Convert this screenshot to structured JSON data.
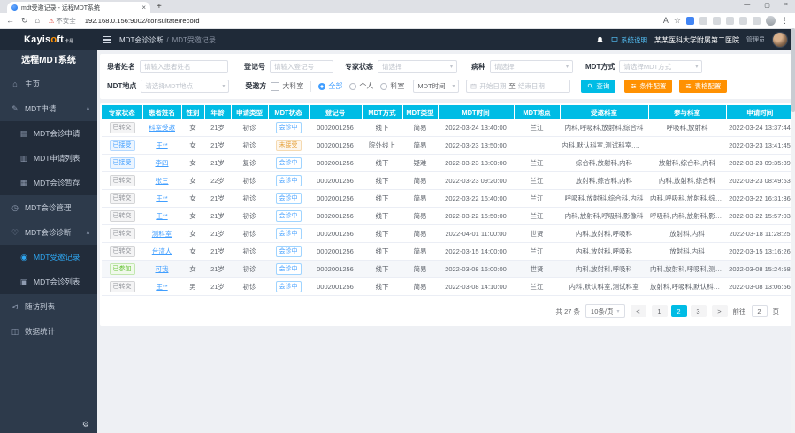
{
  "browser": {
    "tab_title": "mdt受邀记录 - 远程MDT系统",
    "security_label": "不安全",
    "url": "192.168.0.156:9002/consultate/record"
  },
  "icons": {
    "back": "←",
    "reload": "↻",
    "home": "⌂",
    "warning": "⚠",
    "translate": "A",
    "star": "☆",
    "more": "⋮",
    "minimize": "—",
    "maximize": "▢",
    "close": "×",
    "tab_close": "×",
    "new_tab": "+",
    "caret_down": "▾",
    "caret_up": "∧",
    "gear": "⚙"
  },
  "header": {
    "logo_left": "Kayis",
    "logo_o": "o",
    "logo_right": "ft",
    "logo_cn": "卡易",
    "breadcrumb": [
      "MDT会诊诊断",
      "MDT受邀记录"
    ],
    "system_help": "系统说明",
    "hospital": "某某医科大学附属第二医院",
    "role": "管理员"
  },
  "sidebar": {
    "title": "远程MDT系统",
    "items": [
      {
        "label": "主页",
        "icon": "home-icon"
      },
      {
        "label": "MDT申请",
        "icon": "edit-icon",
        "expanded": true,
        "children": [
          {
            "label": "MDT会诊申请",
            "icon": "form-icon"
          },
          {
            "label": "MDT申请列表",
            "icon": "list-icon"
          },
          {
            "label": "MDT会诊暂存",
            "icon": "draft-icon"
          }
        ]
      },
      {
        "label": "MDT会诊管理",
        "icon": "clock-icon"
      },
      {
        "label": "MDT会诊诊断",
        "icon": "diagnose-icon",
        "expanded": true,
        "children": [
          {
            "label": "MDT受邀记录",
            "icon": "record-icon",
            "active": true
          },
          {
            "label": "MDT会诊列表",
            "icon": "consult-list-icon"
          }
        ]
      },
      {
        "label": "随访列表",
        "icon": "follow-up-icon"
      },
      {
        "label": "数据统计",
        "icon": "stats-icon"
      }
    ]
  },
  "filters": {
    "patient_name": {
      "label": "患者姓名",
      "placeholder": "请输入患者姓名"
    },
    "reg_no": {
      "label": "登记号",
      "placeholder": "请输入登记号"
    },
    "expert_status": {
      "label": "专家状态",
      "placeholder": "请选择"
    },
    "disease": {
      "label": "病种",
      "placeholder": "请选择"
    },
    "mdt_mode": {
      "label": "MDT方式",
      "placeholder": "请选择MDT方式"
    },
    "mdt_place": {
      "label": "MDT地点",
      "placeholder": "请选择MDT地点"
    },
    "invitee": {
      "label": "受邀方",
      "checkbox": "大科室",
      "radios": [
        "全部",
        "个人",
        "科室"
      ],
      "selected_radio": "全部"
    },
    "time_select": "MDT时间",
    "date_start": "开始日期",
    "date_to": "至",
    "date_end": "结束日期",
    "search_btn": "查询",
    "cond_btn": "条件配置",
    "table_btn": "表格配置"
  },
  "table": {
    "columns": [
      "专家状态",
      "患者姓名",
      "性别",
      "年龄",
      "申请类型",
      "MDT状态",
      "登记号",
      "MDT方式",
      "MDT类型",
      "MDT时间",
      "MDT地点",
      "受邀科室",
      "参与科室",
      "申请时间"
    ],
    "rows": [
      {
        "expert_status": "已转交",
        "expert_type": "default",
        "name": "科室受邀",
        "sex": "女",
        "age": "21岁",
        "req_type": "初诊",
        "mdt_status": "会诊中",
        "mdt_status_type": "proc",
        "reg_no": "0002001256",
        "mdt_mode": "线下",
        "mdt_type": "简易",
        "mdt_time": "2022-03-24 13:40:00",
        "mdt_place": "兰江",
        "invited_depts": "内科,呼吸科,放射科,综合科",
        "joined_depts": "呼吸科,放射科",
        "apply_time": "2022-03-24 13:37:44"
      },
      {
        "expert_status": "已接受",
        "expert_type": "primary",
        "name": "王**",
        "sex": "女",
        "age": "21岁",
        "req_type": "初诊",
        "mdt_status": "未接受",
        "mdt_status_type": "warn",
        "reg_no": "0002001256",
        "mdt_mode": "院外线上",
        "mdt_type": "简易",
        "mdt_time": "2022-03-23 13:50:00",
        "mdt_place": "",
        "invited_depts": "内科,默认科室,测试科室,放射科",
        "joined_depts": "",
        "apply_time": "2022-03-23 13:41:45"
      },
      {
        "expert_status": "已接受",
        "expert_type": "primary",
        "name": "李四",
        "sex": "女",
        "age": "21岁",
        "req_type": "复诊",
        "mdt_status": "会诊中",
        "mdt_status_type": "proc",
        "reg_no": "0002001256",
        "mdt_mode": "线下",
        "mdt_type": "疑难",
        "mdt_time": "2022-03-23 13:00:00",
        "mdt_place": "兰江",
        "invited_depts": "综合科,放射科,内科",
        "joined_depts": "放射科,综合科,内科",
        "apply_time": "2022-03-23 09:35:39"
      },
      {
        "expert_status": "已转交",
        "expert_type": "default",
        "name": "张三",
        "sex": "女",
        "age": "22岁",
        "req_type": "初诊",
        "mdt_status": "会诊中",
        "mdt_status_type": "proc",
        "reg_no": "0002001256",
        "mdt_mode": "线下",
        "mdt_type": "简易",
        "mdt_time": "2022-03-23 09:20:00",
        "mdt_place": "兰江",
        "invited_depts": "放射科,综合科,内科",
        "joined_depts": "内科,放射科,综合科",
        "apply_time": "2022-03-23 08:49:53"
      },
      {
        "expert_status": "已转交",
        "expert_type": "default",
        "name": "王**",
        "sex": "女",
        "age": "21岁",
        "req_type": "初诊",
        "mdt_status": "会诊中",
        "mdt_status_type": "proc",
        "reg_no": "0002001256",
        "mdt_mode": "线下",
        "mdt_type": "简易",
        "mdt_time": "2022-03-22 16:40:00",
        "mdt_place": "兰江",
        "invited_depts": "呼吸科,放射科,综合科,内科",
        "joined_depts": "内科,呼吸科,放射科,综合科",
        "apply_time": "2022-03-22 16:31:36"
      },
      {
        "expert_status": "已转交",
        "expert_type": "default",
        "name": "王**",
        "sex": "女",
        "age": "21岁",
        "req_type": "初诊",
        "mdt_status": "会诊中",
        "mdt_status_type": "proc",
        "reg_no": "0002001256",
        "mdt_mode": "线下",
        "mdt_type": "简易",
        "mdt_time": "2022-03-22 16:50:00",
        "mdt_place": "兰江",
        "invited_depts": "内科,放射科,呼吸科,影像科",
        "joined_depts": "呼吸科,内科,放射科,影像科",
        "apply_time": "2022-03-22 15:57:03"
      },
      {
        "expert_status": "已转交",
        "expert_type": "default",
        "name": "测科室",
        "sex": "女",
        "age": "21岁",
        "req_type": "初诊",
        "mdt_status": "会诊中",
        "mdt_status_type": "proc",
        "reg_no": "0002001256",
        "mdt_mode": "线下",
        "mdt_type": "简易",
        "mdt_time": "2022-04-01 11:00:00",
        "mdt_place": "世贤",
        "invited_depts": "内科,放射科,呼吸科",
        "joined_depts": "放射科,内科",
        "apply_time": "2022-03-18 11:28:25"
      },
      {
        "expert_status": "已转交",
        "expert_type": "default",
        "name": "台湾人",
        "sex": "女",
        "age": "21岁",
        "req_type": "初诊",
        "mdt_status": "会诊中",
        "mdt_status_type": "proc",
        "reg_no": "0002001256",
        "mdt_mode": "线下",
        "mdt_type": "简易",
        "mdt_time": "2022-03-15 14:00:00",
        "mdt_place": "兰江",
        "invited_depts": "内科,放射科,呼吸科",
        "joined_depts": "放射科,内科",
        "apply_time": "2022-03-15 13:16:26"
      },
      {
        "expert_status": "已参加",
        "expert_type": "success",
        "name": "可我",
        "sex": "女",
        "age": "21岁",
        "req_type": "初诊",
        "mdt_status": "会诊中",
        "mdt_status_type": "proc",
        "reg_no": "0002001256",
        "mdt_mode": "线下",
        "mdt_type": "简易",
        "mdt_time": "2022-03-08 16:00:00",
        "mdt_place": "世贤",
        "invited_depts": "内科,放射科,呼吸科",
        "joined_depts": "内科,放射科,呼吸科,测试科室",
        "apply_time": "2022-03-08 15:24:58",
        "shaded": true
      },
      {
        "expert_status": "已转交",
        "expert_type": "default",
        "name": "王**",
        "sex": "男",
        "age": "21岁",
        "req_type": "初诊",
        "mdt_status": "会诊中",
        "mdt_status_type": "proc",
        "reg_no": "0002001256",
        "mdt_mode": "线下",
        "mdt_type": "简易",
        "mdt_time": "2022-03-08 14:10:00",
        "mdt_place": "兰江",
        "invited_depts": "内科,默认科室,测试科室",
        "joined_depts": "放射科,呼吸科,默认科室,测...",
        "apply_time": "2022-03-08 13:06:56"
      }
    ]
  },
  "pagination": {
    "total": "共 27 条",
    "page_size": "10条/页",
    "prev": "<",
    "next": ">",
    "pages": [
      "1",
      "2",
      "3"
    ],
    "current": "2",
    "jump_label": "前往",
    "jump_value": "2",
    "jump_suffix": "页"
  }
}
